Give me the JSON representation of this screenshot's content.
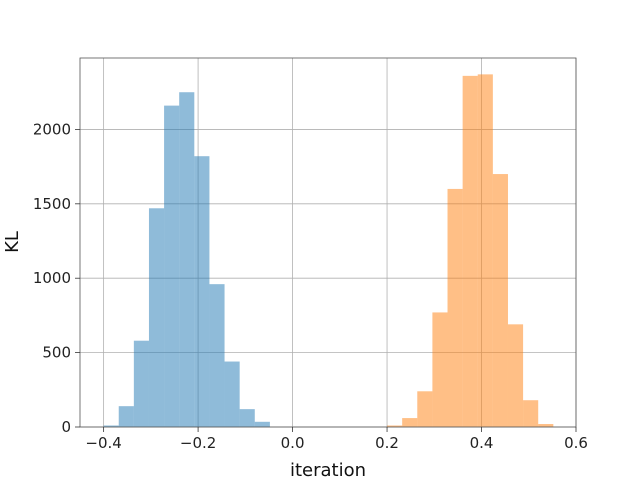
{
  "chart_data": {
    "type": "bar",
    "subtype": "histogram",
    "xlabel": "iteration",
    "ylabel": "KL",
    "xlim": [
      -0.45,
      0.6
    ],
    "ylim": [
      0,
      2480
    ],
    "grid": true,
    "xticks": [
      -0.4,
      -0.2,
      0.0,
      0.2,
      0.4,
      0.6
    ],
    "xtick_labels": [
      "−0.4",
      "−0.2",
      "0.0",
      "0.2",
      "0.4",
      "0.6"
    ],
    "yticks": [
      0,
      500,
      1000,
      1500,
      2000
    ],
    "ytick_labels": [
      "0",
      "500",
      "1000",
      "1500",
      "2000"
    ],
    "series": [
      {
        "color": "#1f77b4",
        "opacity": 0.5,
        "bin_edges": [
          -0.4,
          -0.368,
          -0.336,
          -0.304,
          -0.272,
          -0.24,
          -0.208,
          -0.176,
          -0.144,
          -0.112,
          -0.08,
          -0.048
        ],
        "values": [
          10,
          140,
          580,
          1470,
          2160,
          2250,
          1820,
          960,
          440,
          120,
          35
        ]
      },
      {
        "color": "#ff7f0e",
        "opacity": 0.5,
        "bin_edges": [
          0.2,
          0.232,
          0.264,
          0.296,
          0.328,
          0.36,
          0.392,
          0.424,
          0.456,
          0.488,
          0.52,
          0.552
        ],
        "values": [
          10,
          60,
          240,
          770,
          1600,
          2360,
          2370,
          1700,
          690,
          180,
          20
        ]
      }
    ]
  }
}
